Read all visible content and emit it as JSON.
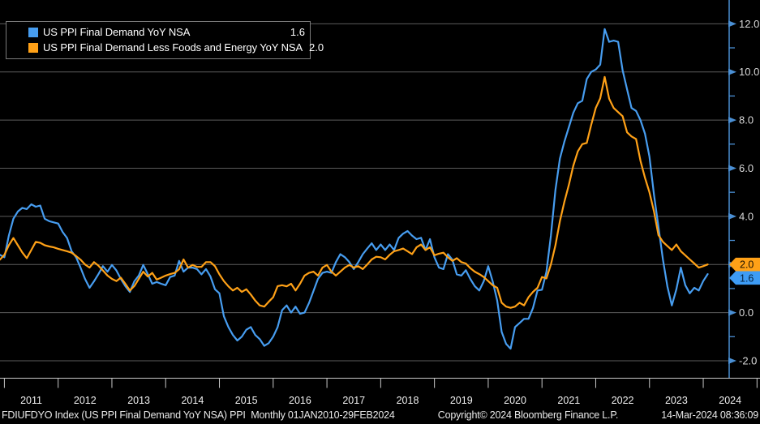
{
  "legend": {
    "series": [
      {
        "label": "US PPI Final Demand YoY NSA",
        "value": "1.6",
        "color": "#479DF0"
      },
      {
        "label": "US PPI Final Demand Less Foods and Energy YoY NSA",
        "value": "2.0",
        "color": "#FFA117"
      }
    ]
  },
  "y_axis": {
    "major_ticks": [
      12.0,
      10.0,
      8.0,
      6.0,
      4.0,
      2.0,
      0.0,
      -2.0
    ],
    "minor_ticks": [
      11,
      9,
      7,
      5,
      3,
      1,
      -1
    ],
    "tick_label_format": "one-decimal",
    "value_tags": [
      {
        "label": "2.0",
        "value": 2.0,
        "bg": "#FFA117",
        "fg": "#1a1000"
      },
      {
        "label": "1.6",
        "value": 1.6,
        "bg": "#3E9CF5",
        "fg": "#06233f"
      }
    ]
  },
  "x_axis": {
    "years": [
      "2011",
      "2012",
      "2013",
      "2014",
      "2015",
      "2016",
      "2017",
      "2018",
      "2019",
      "2020",
      "2021",
      "2022",
      "2023",
      "2024"
    ]
  },
  "footer": {
    "left": "FDIUFDYO Index (US PPI Final Demand YoY NSA) PPI  Monthly 01JAN2010-29FEB2024",
    "center": "Copyright© 2024 Bloomberg Finance L.P.",
    "right": "14-Mar-2024 08:36:09"
  },
  "chart_data": {
    "type": "line",
    "frequency": "monthly",
    "x_start": "2010-12",
    "x_end": "2024-02",
    "x_tick_labels": [
      "2011",
      "2012",
      "2013",
      "2014",
      "2015",
      "2016",
      "2017",
      "2018",
      "2019",
      "2020",
      "2021",
      "2022",
      "2023",
      "2024"
    ],
    "ylim": [
      -2.9,
      13.0
    ],
    "y_ticks": [
      12.0,
      10.0,
      8.0,
      6.0,
      4.0,
      2.0,
      0.0,
      -2.0
    ],
    "grid": "horizontal",
    "legend_position": "top-left",
    "axis_side": "right",
    "series": [
      {
        "name": "US PPI Final Demand YoY NSA",
        "color": "#479DF0",
        "last_value": 1.6,
        "values": [
          2.4,
          2.3,
          3.2,
          3.9,
          4.2,
          4.35,
          4.3,
          4.5,
          4.4,
          4.45,
          3.9,
          3.8,
          3.75,
          3.7,
          3.35,
          3.1,
          2.55,
          2.3,
          1.87,
          1.4,
          1.03,
          1.3,
          1.6,
          1.93,
          1.7,
          1.98,
          1.75,
          1.4,
          1.1,
          0.86,
          1.3,
          1.54,
          1.98,
          1.6,
          1.2,
          1.27,
          1.2,
          1.14,
          1.48,
          1.54,
          2.15,
          1.7,
          1.87,
          1.87,
          1.81,
          1.59,
          1.81,
          1.5,
          0.97,
          0.8,
          -0.15,
          -0.6,
          -0.93,
          -1.16,
          -1.0,
          -0.71,
          -0.6,
          -0.93,
          -1.1,
          -1.38,
          -1.27,
          -1.0,
          -0.6,
          0.1,
          0.3,
          0.0,
          0.25,
          -0.05,
          0.0,
          0.4,
          0.9,
          1.4,
          1.65,
          1.7,
          1.65,
          2.1,
          2.43,
          2.3,
          2.1,
          1.81,
          2.1,
          2.43,
          2.66,
          2.88,
          2.6,
          2.83,
          2.6,
          2.83,
          2.6,
          3.1,
          3.28,
          3.39,
          3.2,
          3.05,
          3.11,
          2.6,
          3.05,
          2.3,
          1.87,
          1.81,
          2.43,
          2.2,
          1.59,
          1.54,
          1.76,
          1.4,
          1.1,
          0.92,
          1.3,
          1.93,
          1.3,
          0.5,
          -0.8,
          -1.3,
          -1.5,
          -0.6,
          -0.43,
          -0.26,
          -0.26,
          0.19,
          0.92,
          0.95,
          1.7,
          3.2,
          5.1,
          6.4,
          7.1,
          7.7,
          8.3,
          8.7,
          8.8,
          9.7,
          10.0,
          10.1,
          10.3,
          11.78,
          11.25,
          11.3,
          11.25,
          10.07,
          9.28,
          8.5,
          8.38,
          7.99,
          7.43,
          6.48,
          4.9,
          3.56,
          2.21,
          1.09,
          0.3,
          0.97,
          1.87,
          1.14,
          0.8,
          1.03,
          0.92,
          1.31,
          1.6
        ]
      },
      {
        "name": "US PPI Final Demand Less Foods and Energy YoY NSA",
        "color": "#FFA117",
        "last_value": 2.0,
        "values": [
          2.2,
          2.4,
          2.8,
          3.1,
          2.8,
          2.5,
          2.26,
          2.6,
          2.94,
          2.9,
          2.8,
          2.75,
          2.71,
          2.65,
          2.6,
          2.55,
          2.49,
          2.35,
          2.2,
          2.0,
          1.87,
          2.1,
          1.95,
          1.75,
          1.54,
          1.4,
          1.31,
          1.45,
          1.2,
          0.92,
          1.1,
          1.4,
          1.7,
          1.5,
          1.65,
          1.37,
          1.45,
          1.54,
          1.6,
          1.65,
          1.8,
          2.21,
          1.87,
          1.98,
          1.9,
          1.9,
          2.1,
          2.1,
          1.93,
          1.59,
          1.31,
          1.09,
          0.92,
          1.03,
          0.86,
          0.97,
          0.75,
          0.5,
          0.3,
          0.25,
          0.45,
          0.64,
          1.1,
          1.14,
          1.09,
          1.2,
          0.92,
          1.2,
          1.54,
          1.65,
          1.7,
          1.54,
          1.87,
          1.98,
          1.7,
          1.54,
          1.7,
          1.87,
          1.98,
          1.87,
          1.93,
          1.81,
          2.0,
          2.21,
          2.32,
          2.3,
          2.21,
          2.4,
          2.55,
          2.6,
          2.66,
          2.55,
          2.43,
          2.71,
          2.83,
          2.6,
          2.71,
          2.38,
          2.45,
          2.49,
          2.3,
          2.15,
          2.26,
          2.1,
          2.04,
          1.85,
          1.7,
          1.6,
          1.48,
          1.31,
          1.14,
          1.03,
          0.41,
          0.25,
          0.2,
          0.25,
          0.41,
          0.3,
          0.64,
          0.86,
          1.03,
          1.48,
          1.42,
          2.0,
          2.8,
          3.8,
          4.6,
          5.3,
          6.1,
          6.7,
          7.0,
          7.05,
          7.8,
          8.5,
          8.9,
          9.79,
          8.89,
          8.5,
          8.33,
          8.16,
          7.49,
          7.32,
          7.21,
          6.3,
          5.6,
          5.0,
          4.2,
          3.22,
          2.94,
          2.77,
          2.6,
          2.83,
          2.55,
          2.38,
          2.21,
          2.04,
          1.87,
          1.93,
          2.0
        ]
      }
    ]
  },
  "style": {
    "grid_color": "#5c5c5c",
    "axis_color": "#4a8fd4",
    "tick_label_color": "#d9d9d9",
    "x_label_color": "#f0f0f0",
    "x_line_color": "#c9c9c9"
  }
}
